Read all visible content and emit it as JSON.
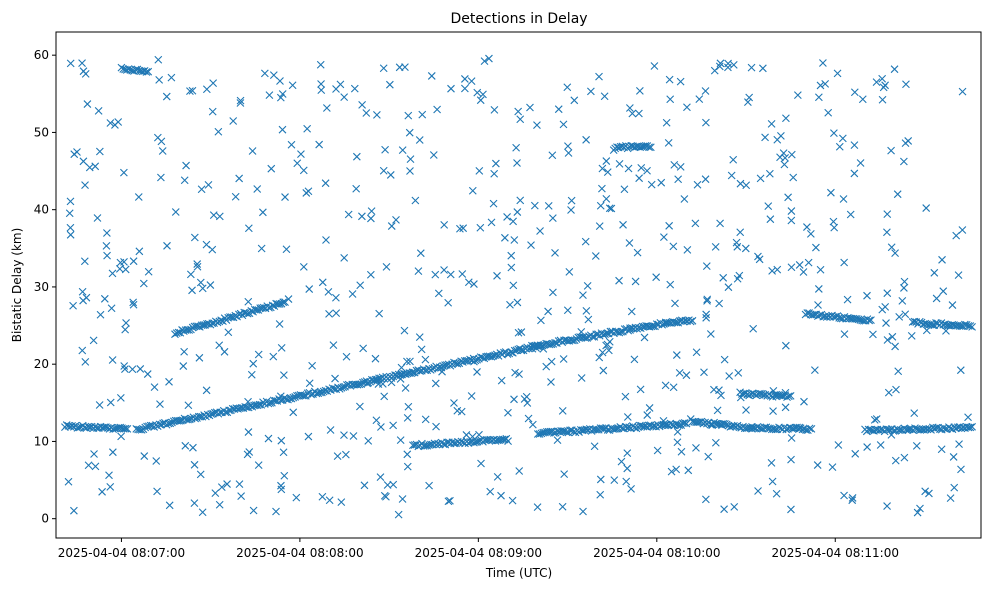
{
  "chart_data": {
    "type": "scatter",
    "title": "Detections in Delay",
    "xlabel": "Time (UTC)",
    "ylabel": "Bistatic Delay (km)",
    "marker": "x",
    "marker_color": "#1f77b4",
    "xlim": [
      "2025-04-04 08:06:38",
      "2025-04-04 08:11:49"
    ],
    "ylim": [
      -2.5,
      63
    ],
    "x_ticks": [
      "2025-04-04 08:07:00",
      "2025-04-04 08:08:00",
      "2025-04-04 08:09:00",
      "2025-04-04 08:10:00",
      "2025-04-04 08:11:00"
    ],
    "y_ticks": [
      0,
      10,
      20,
      30,
      40,
      50,
      60
    ],
    "grid": false,
    "legend": "none",
    "series": [
      {
        "tracks": [
          {
            "start": "2025-04-04 08:06:41",
            "end": "2025-04-04 08:07:02",
            "y_start": 12.0,
            "y_end": 11.6
          },
          {
            "start": "2025-04-04 08:07:05",
            "end": "2025-04-04 08:09:20",
            "y_start": 11.5,
            "y_end": 22.3
          },
          {
            "start": "2025-04-04 08:09:18",
            "end": "2025-04-04 08:10:03",
            "y_start": 22.3,
            "y_end": 25.3
          },
          {
            "start": "2025-04-04 08:10:03",
            "end": "2025-04-04 08:10:12",
            "y_start": 25.3,
            "y_end": 25.7
          },
          {
            "start": "2025-04-04 08:07:18",
            "end": "2025-04-04 08:07:55",
            "y_start": 24.0,
            "y_end": 28.0
          },
          {
            "start": "2025-04-04 08:08:38",
            "end": "2025-04-04 08:09:10",
            "y_start": 9.5,
            "y_end": 10.2
          },
          {
            "start": "2025-04-04 08:09:20",
            "end": "2025-04-04 08:10:10",
            "y_start": 11.0,
            "y_end": 12.3
          },
          {
            "start": "2025-04-04 08:10:12",
            "end": "2025-04-04 08:10:32",
            "y_start": 12.6,
            "y_end": 11.7
          },
          {
            "start": "2025-04-04 08:10:32",
            "end": "2025-04-04 08:10:52",
            "y_start": 11.8,
            "y_end": 11.6
          },
          {
            "start": "2025-04-04 08:10:28",
            "end": "2025-04-04 08:10:45",
            "y_start": 16.2,
            "y_end": 15.8
          },
          {
            "start": "2025-04-04 08:10:50",
            "end": "2025-04-04 08:11:12",
            "y_start": 26.5,
            "y_end": 25.7
          },
          {
            "start": "2025-04-04 08:11:10",
            "end": "2025-04-04 08:11:46",
            "y_start": 11.4,
            "y_end": 11.8
          },
          {
            "start": "2025-04-04 08:11:26",
            "end": "2025-04-04 08:11:46",
            "y_start": 25.4,
            "y_end": 24.9
          },
          {
            "start": "2025-04-04 08:09:46",
            "end": "2025-04-04 08:09:58",
            "y_start": 48.1,
            "y_end": 48.1
          },
          {
            "start": "2025-04-04 08:07:00",
            "end": "2025-04-04 08:07:09",
            "y_start": 58.3,
            "y_end": 57.9
          }
        ],
        "clutter_points": 700
      }
    ]
  }
}
